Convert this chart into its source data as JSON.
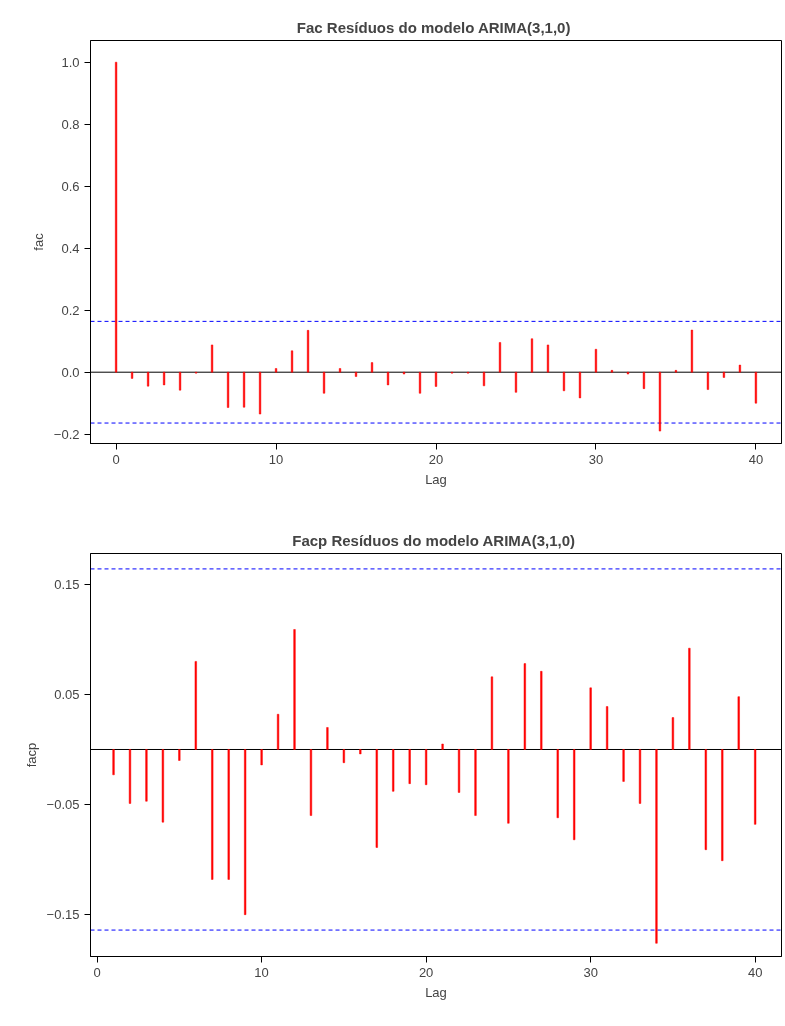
{
  "chart_data": [
    {
      "type": "bar",
      "title": "Fac Resíduos do  modelo ARIMA(3,1,0)",
      "xlabel": "Lag",
      "ylabel": "fac",
      "color": "#ff0000",
      "x": [
        0,
        1,
        2,
        3,
        4,
        5,
        6,
        7,
        8,
        9,
        10,
        11,
        12,
        13,
        14,
        15,
        16,
        17,
        18,
        19,
        20,
        21,
        22,
        23,
        24,
        25,
        26,
        27,
        28,
        29,
        30,
        31,
        32,
        33,
        34,
        35,
        36,
        37,
        38,
        39,
        40
      ],
      "values": [
        1.0,
        -0.02,
        -0.045,
        -0.041,
        -0.058,
        -0.003,
        0.088,
        -0.114,
        -0.113,
        -0.135,
        0.012,
        0.069,
        0.135,
        -0.068,
        0.012,
        -0.014,
        0.031,
        -0.041,
        -0.006,
        -0.068,
        -0.046,
        -0.003,
        -0.003,
        -0.044,
        0.096,
        -0.065,
        0.108,
        0.088,
        -0.06,
        -0.083,
        0.074,
        0.006,
        -0.006,
        -0.053,
        -0.19,
        0.006,
        0.136,
        -0.056,
        -0.017,
        0.023,
        -0.1
      ],
      "xlim": [
        -1.6,
        41.6
      ],
      "ylim": [
        -0.23,
        1.07
      ],
      "xticks": [
        0,
        10,
        20,
        30,
        40
      ],
      "yticks": [
        {
          "value": -0.2,
          "label": "−0.2"
        },
        {
          "value": 0,
          "label": "0.0"
        },
        {
          "value": 0.2,
          "label": "0.2"
        },
        {
          "value": 0.4,
          "label": "0.4"
        },
        {
          "value": 0.6,
          "label": "0.6"
        },
        {
          "value": 0.8,
          "label": "0.8"
        },
        {
          "value": 1.0,
          "label": "1.0"
        }
      ],
      "ref_lines": [
        {
          "axis": "y",
          "value": 0,
          "label": null,
          "color": "#000000",
          "line_style": "solid"
        },
        {
          "axis": "y",
          "value": 0.164,
          "label": null,
          "color": "#0000ff",
          "line_style": "dashed"
        },
        {
          "axis": "y",
          "value": -0.164,
          "label": null,
          "color": "#0000ff",
          "line_style": "dashed"
        }
      ],
      "grid": false,
      "legend": false
    },
    {
      "type": "bar",
      "title": "Facp Resíduos do  modelo ARIMA(3,1,0)",
      "xlabel": "Lag",
      "ylabel": "facp",
      "color": "#ff0000",
      "x": [
        1,
        2,
        3,
        4,
        5,
        6,
        7,
        8,
        9,
        10,
        11,
        12,
        13,
        14,
        15,
        16,
        17,
        18,
        19,
        20,
        21,
        22,
        23,
        24,
        25,
        26,
        27,
        28,
        29,
        30,
        31,
        32,
        33,
        34,
        35,
        36,
        37,
        38,
        39,
        40
      ],
      "values": [
        -0.023,
        -0.049,
        -0.047,
        -0.066,
        -0.01,
        0.08,
        -0.118,
        -0.118,
        -0.15,
        -0.014,
        0.032,
        0.109,
        -0.06,
        0.02,
        -0.012,
        -0.004,
        -0.089,
        -0.038,
        -0.031,
        -0.032,
        0.005,
        -0.039,
        -0.06,
        0.066,
        -0.067,
        0.078,
        0.071,
        -0.062,
        -0.082,
        0.056,
        0.039,
        -0.029,
        -0.049,
        -0.176,
        0.029,
        0.092,
        -0.091,
        -0.101,
        0.048,
        -0.068
      ],
      "xlim": [
        -0.4,
        41.6
      ],
      "ylim": [
        -0.188,
        0.178
      ],
      "xticks": [
        0,
        10,
        20,
        30,
        40
      ],
      "yticks": [
        {
          "value": -0.15,
          "label": "−0.15"
        },
        {
          "value": -0.05,
          "label": "−0.05"
        },
        {
          "value": 0.05,
          "label": "0.05"
        },
        {
          "value": 0.15,
          "label": "0.15"
        }
      ],
      "ref_lines": [
        {
          "axis": "y",
          "value": 0,
          "label": null,
          "color": "#000000",
          "line_style": "solid"
        },
        {
          "axis": "y",
          "value": 0.164,
          "label": null,
          "color": "#0000ff",
          "line_style": "dashed"
        },
        {
          "axis": "y",
          "value": -0.164,
          "label": null,
          "color": "#0000ff",
          "line_style": "dashed"
        }
      ],
      "grid": false,
      "legend": false
    }
  ]
}
